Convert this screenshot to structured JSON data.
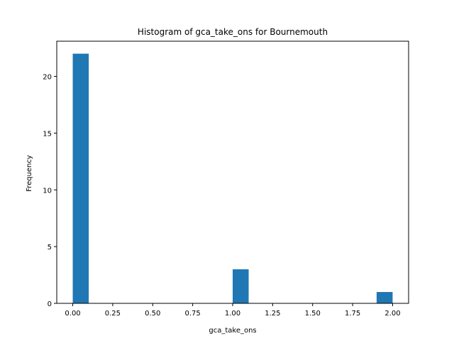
{
  "chart_data": {
    "type": "bar",
    "title": "Histogram of gca_take_ons for Bournemouth",
    "xlabel": "gca_take_ons",
    "ylabel": "Frequency",
    "xlim": [
      -0.1,
      2.1
    ],
    "ylim": [
      0,
      23.1
    ],
    "xticks": [
      0.0,
      0.25,
      0.5,
      0.75,
      1.0,
      1.25,
      1.5,
      1.75,
      2.0
    ],
    "xtick_labels": [
      "0.00",
      "0.25",
      "0.50",
      "0.75",
      "1.00",
      "1.25",
      "1.50",
      "1.75",
      "2.00"
    ],
    "yticks": [
      0,
      5,
      10,
      15,
      20
    ],
    "ytick_labels": [
      "0",
      "5",
      "10",
      "15",
      "20"
    ],
    "bins": [
      {
        "start": 0.0,
        "end": 0.1,
        "count": 22
      },
      {
        "start": 1.0,
        "end": 1.1,
        "count": 3
      },
      {
        "start": 1.9,
        "end": 2.0,
        "count": 1
      }
    ],
    "bar_color": "#1f77b4",
    "grid": false,
    "legend": false
  }
}
